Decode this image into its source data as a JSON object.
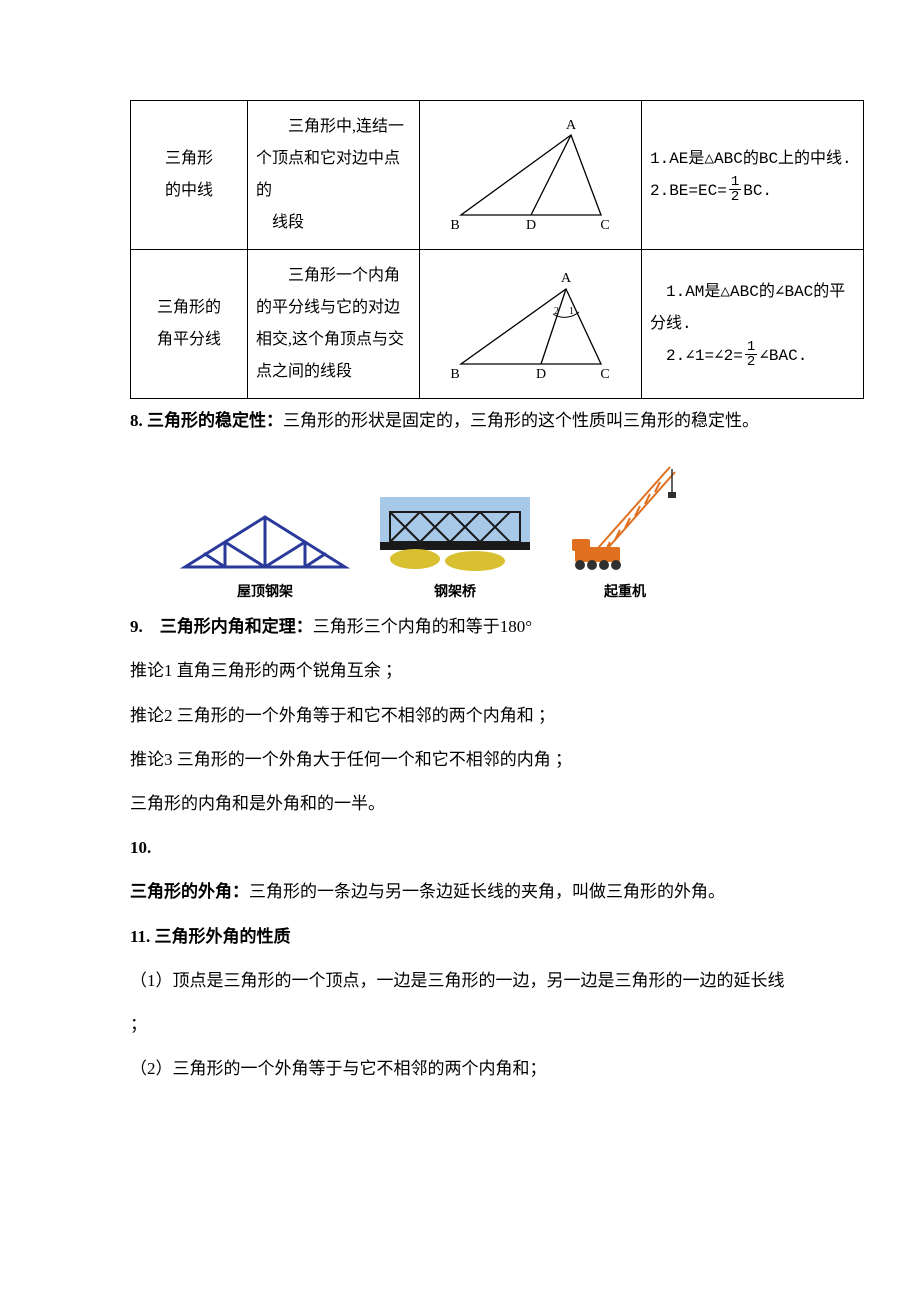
{
  "table": {
    "rows": [
      {
        "name": "三角形\n的中线",
        "def": "　　三角形中,连结一个顶点和它对边中点的\n　线段",
        "diagram": {
          "type": "median",
          "A": "A",
          "B": "B",
          "C": "C",
          "D": "D"
        },
        "props": {
          "p1": "1.AE是△ABC的BC上的中线.",
          "p2_pre": "2.BE=EC=",
          "p2_frac_num": "1",
          "p2_frac_den": "2",
          "p2_post": "BC."
        }
      },
      {
        "name": "三角形的\n角平分线",
        "def": "　　三角形一个内角的平分线与它的对边相交,这个角顶点与交点之间的线段",
        "diagram": {
          "type": "bisector",
          "A": "A",
          "B": "B",
          "C": "C",
          "D": "D"
        },
        "props": {
          "p1": "　1.AM是△ABC的∠BAC的平分线.",
          "p2_pre": "　2.∠1=∠2=",
          "p2_frac_num": "1",
          "p2_frac_den": "2",
          "p2_post": "∠BAC."
        }
      }
    ]
  },
  "sec8": {
    "title": "8. 三角形的稳定性：",
    "text": "三角形的形状是固定的，三角形的这个性质叫三角形的稳定性。"
  },
  "illus": {
    "truss_cap": "屋顶钢架",
    "bridge_cap": "钢架桥",
    "crane_cap": "起重机",
    "truss_color": "#2a3a9a",
    "bridge_dark": "#1a1a1a",
    "bridge_yellow": "#d9c030",
    "bridge_sky": "#a8c8e8",
    "crane_orange": "#e07020",
    "crane_dark": "#303030"
  },
  "sec9": {
    "title": "9.　三角形内角和定理：",
    "text": "三角形三个内角的和等于180°",
    "c1": "推论1  直角三角形的两个锐角互余 ；",
    "c2": "推论2  三角形的一个外角等于和它不相邻的两个内角和 ；",
    "c3": "推论3  三角形的一个外角大于任何一个和它不相邻的内角 ；",
    "c4": "三角形的内角和是外角和的一半。"
  },
  "sec10": {
    "num": "10.",
    "title": "三角形的外角：",
    "text": "三角形的一条边与另一条边延长线的夹角，叫做三角形的外角。"
  },
  "sec11": {
    "title": "11. 三角形外角的性质",
    "p1": "（1）顶点是三角形的一个顶点，一边是三角形的一边，另一边是三角形的一边的延长线 ；",
    "p2": "（2）三角形的一个外角等于与它不相邻的两个内角和；"
  },
  "colors": {
    "text": "#000000",
    "border": "#000000",
    "bg": "#ffffff"
  }
}
